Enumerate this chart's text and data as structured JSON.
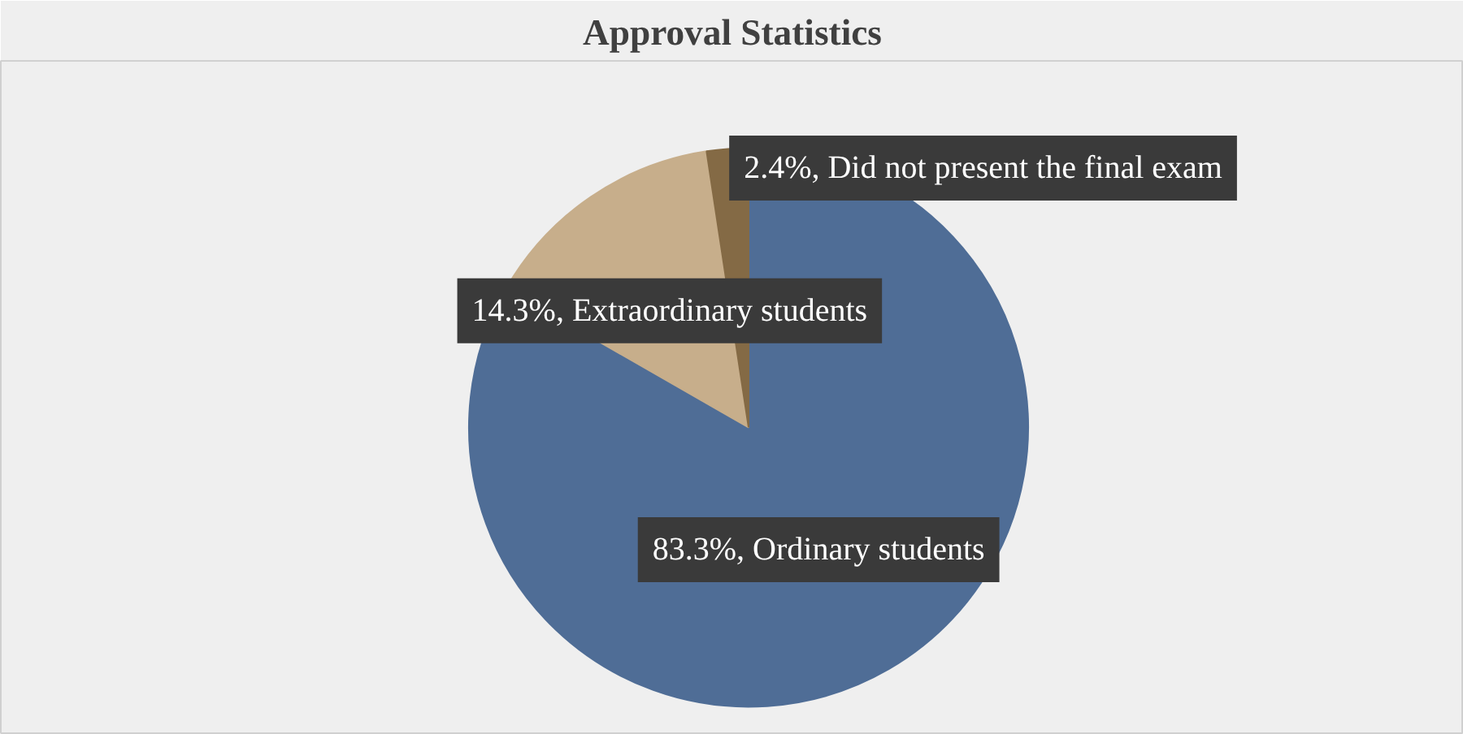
{
  "chart_data": {
    "type": "pie",
    "title": "Approval Statistics",
    "categories": [
      "Ordinary students",
      "Extraordinary students",
      "Did not present the final exam"
    ],
    "values": [
      83.3,
      14.3,
      2.4
    ],
    "colors": [
      "#4f6d96",
      "#c7ae8b",
      "#846a45"
    ],
    "value_labels": [
      "83.3%",
      "14.3%",
      "2.4%"
    ]
  }
}
